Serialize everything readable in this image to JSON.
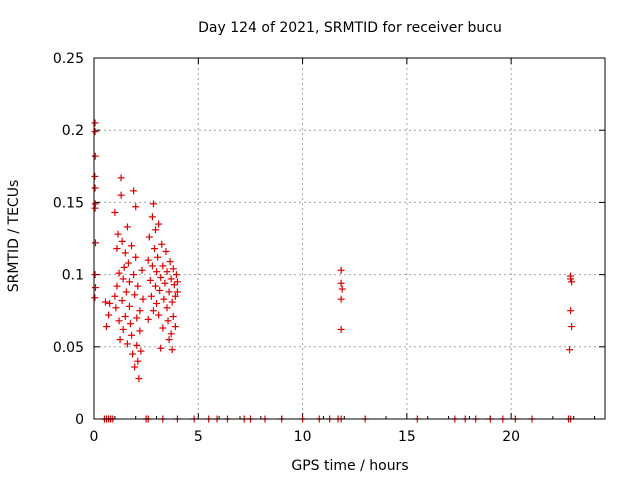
{
  "chart_data": {
    "type": "scatter",
    "title": "Day 124 of 2021, SRMTID for receiver bucu",
    "xlabel": "GPS time / hours",
    "ylabel": "SRMTID / TECUs",
    "xlim": [
      0,
      24.5
    ],
    "ylim": [
      0,
      0.25
    ],
    "x_ticks": [
      0,
      5,
      10,
      15,
      20
    ],
    "x_tick_labels": [
      "0",
      "5",
      "10",
      "15",
      "20"
    ],
    "y_ticks": [
      0,
      0.05,
      0.1,
      0.15,
      0.2,
      0.25
    ],
    "y_tick_labels": [
      "0",
      "0.05",
      "0.1",
      "0.15",
      "0.2",
      "0.25"
    ],
    "grid": true,
    "marker": "plus",
    "marker_color": "#dd0000",
    "series": [
      {
        "points": [
          [
            0.05,
            0.205
          ],
          [
            0.05,
            0.199
          ],
          [
            0.06,
            0.182
          ],
          [
            0.04,
            0.168
          ],
          [
            0.05,
            0.16
          ],
          [
            0.06,
            0.149
          ],
          [
            0.05,
            0.146
          ],
          [
            0.07,
            0.122
          ],
          [
            0.05,
            0.1
          ],
          [
            0.07,
            0.091
          ],
          [
            0.04,
            0.084
          ],
          [
            0.55,
            0.081
          ],
          [
            0.6,
            0.064
          ],
          [
            0.7,
            0.072
          ],
          [
            0.75,
            0.08
          ],
          [
            1.0,
            0.143
          ],
          [
            1.0,
            0.085
          ],
          [
            1.05,
            0.077
          ],
          [
            1.1,
            0.092
          ],
          [
            1.1,
            0.118
          ],
          [
            1.15,
            0.128
          ],
          [
            1.2,
            0.101
          ],
          [
            1.2,
            0.068
          ],
          [
            1.25,
            0.055
          ],
          [
            1.3,
            0.167
          ],
          [
            1.3,
            0.155
          ],
          [
            1.35,
            0.123
          ],
          [
            1.35,
            0.082
          ],
          [
            1.4,
            0.097
          ],
          [
            1.4,
            0.062
          ],
          [
            1.45,
            0.105
          ],
          [
            1.5,
            0.115
          ],
          [
            1.5,
            0.071
          ],
          [
            1.55,
            0.088
          ],
          [
            1.6,
            0.133
          ],
          [
            1.6,
            0.052
          ],
          [
            1.65,
            0.108
          ],
          [
            1.7,
            0.095
          ],
          [
            1.7,
            0.078
          ],
          [
            1.75,
            0.066
          ],
          [
            1.8,
            0.12
          ],
          [
            1.8,
            0.058
          ],
          [
            1.85,
            0.045
          ],
          [
            1.9,
            0.158
          ],
          [
            1.9,
            0.1
          ],
          [
            1.95,
            0.086
          ],
          [
            1.95,
            0.036
          ],
          [
            2.0,
            0.147
          ],
          [
            2.0,
            0.112
          ],
          [
            2.05,
            0.07
          ],
          [
            2.05,
            0.051
          ],
          [
            2.1,
            0.092
          ],
          [
            2.1,
            0.04
          ],
          [
            2.15,
            0.028
          ],
          [
            2.2,
            0.075
          ],
          [
            2.2,
            0.061
          ],
          [
            2.25,
            0.047
          ],
          [
            2.3,
            0.103
          ],
          [
            2.35,
            0.083
          ],
          [
            2.6,
            0.11
          ],
          [
            2.6,
            0.069
          ],
          [
            2.65,
            0.126
          ],
          [
            2.7,
            0.096
          ],
          [
            2.75,
            0.085
          ],
          [
            2.8,
            0.14
          ],
          [
            2.8,
            0.106
          ],
          [
            2.85,
            0.149
          ],
          [
            2.85,
            0.075
          ],
          [
            2.9,
            0.118
          ],
          [
            2.95,
            0.131
          ],
          [
            2.95,
            0.092
          ],
          [
            3.0,
            0.102
          ],
          [
            3.0,
            0.08
          ],
          [
            3.05,
            0.112
          ],
          [
            3.1,
            0.135
          ],
          [
            3.1,
            0.072
          ],
          [
            3.15,
            0.089
          ],
          [
            3.2,
            0.098
          ],
          [
            3.2,
            0.049
          ],
          [
            3.25,
            0.121
          ],
          [
            3.3,
            0.106
          ],
          [
            3.3,
            0.063
          ],
          [
            3.35,
            0.083
          ],
          [
            3.4,
            0.094
          ],
          [
            3.45,
            0.116
          ],
          [
            3.5,
            0.102
          ],
          [
            3.5,
            0.077
          ],
          [
            3.55,
            0.068
          ],
          [
            3.6,
            0.088
          ],
          [
            3.65,
            0.109
          ],
          [
            3.7,
            0.097
          ],
          [
            3.7,
            0.059
          ],
          [
            3.75,
            0.081
          ],
          [
            3.8,
            0.104
          ],
          [
            3.8,
            0.071
          ],
          [
            3.85,
            0.093
          ],
          [
            3.9,
            0.085
          ],
          [
            3.9,
            0.064
          ],
          [
            3.95,
            0.1
          ],
          [
            4.0,
            0.095
          ],
          [
            4.0,
            0.088
          ],
          [
            3.75,
            0.048
          ],
          [
            3.6,
            0.055
          ],
          [
            11.85,
            0.103
          ],
          [
            11.85,
            0.094
          ],
          [
            11.9,
            0.09
          ],
          [
            11.85,
            0.083
          ],
          [
            11.85,
            0.062
          ],
          [
            22.85,
            0.099
          ],
          [
            22.85,
            0.097
          ],
          [
            22.9,
            0.095
          ],
          [
            22.85,
            0.075
          ],
          [
            22.9,
            0.064
          ],
          [
            22.8,
            0.048
          ],
          [
            0.5,
            0
          ],
          [
            0.6,
            0
          ],
          [
            0.7,
            0
          ],
          [
            0.8,
            0
          ],
          [
            0.9,
            0
          ],
          [
            2.5,
            0
          ],
          [
            2.6,
            0
          ],
          [
            3.3,
            0
          ],
          [
            4.0,
            0
          ],
          [
            4.8,
            0
          ],
          [
            5.5,
            0
          ],
          [
            5.9,
            0
          ],
          [
            6.4,
            0
          ],
          [
            7.2,
            0
          ],
          [
            7.5,
            0
          ],
          [
            8.2,
            0
          ],
          [
            9.0,
            0
          ],
          [
            10.0,
            0
          ],
          [
            10.8,
            0
          ],
          [
            11.3,
            0
          ],
          [
            11.7,
            0
          ],
          [
            11.85,
            0
          ],
          [
            13.0,
            0
          ],
          [
            15.5,
            0
          ],
          [
            17.3,
            0
          ],
          [
            17.8,
            0
          ],
          [
            18.3,
            0
          ],
          [
            19.0,
            0
          ],
          [
            19.6,
            0
          ],
          [
            20.2,
            0
          ],
          [
            21.0,
            0
          ],
          [
            22.75,
            0
          ],
          [
            22.85,
            0
          ]
        ]
      }
    ]
  }
}
